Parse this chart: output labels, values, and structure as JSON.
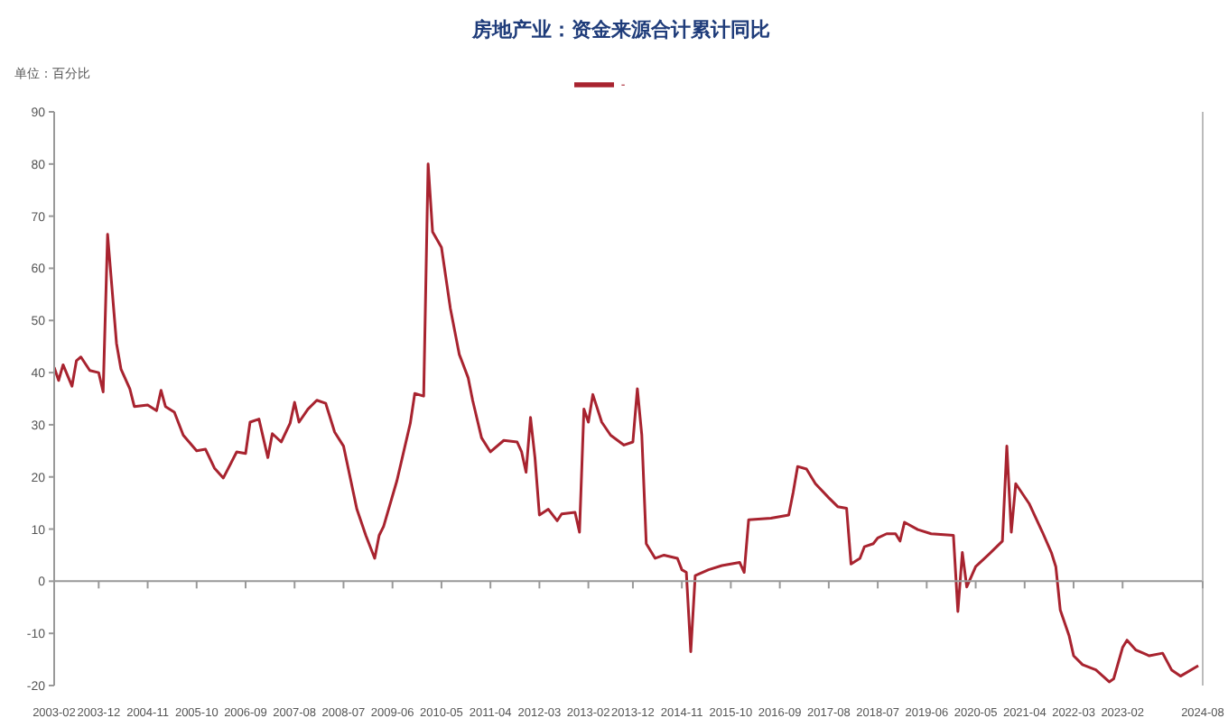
{
  "chart_data": {
    "type": "line",
    "title": "房地产业：资金来源合计累计同比",
    "ylabel": "单位：百分比",
    "legend": "top",
    "marker": "none",
    "x": [
      "2003-02",
      "2003-03",
      "2003-04",
      "2003-06",
      "2003-07",
      "2003-08",
      "2003-10",
      "2003-12",
      "2004-01",
      "2004-02",
      "2004-04",
      "2004-05",
      "2004-07",
      "2004-08",
      "2004-11",
      "2005-01",
      "2005-02",
      "2005-03",
      "2005-05",
      "2005-07",
      "2005-10",
      "2005-12",
      "2006-02",
      "2006-04",
      "2006-07",
      "2006-09",
      "2006-10",
      "2006-12",
      "2007-02",
      "2007-03",
      "2007-05",
      "2007-07",
      "2007-08",
      "2007-09",
      "2007-11",
      "2008-01",
      "2008-03",
      "2008-05",
      "2008-07",
      "2008-10",
      "2008-12",
      "2009-02",
      "2009-03",
      "2009-04",
      "2009-07",
      "2009-10",
      "2009-11",
      "2010-01",
      "2010-02",
      "2010-03",
      "2010-05",
      "2010-07",
      "2010-09",
      "2010-11",
      "2010-12",
      "2011-02",
      "2011-04",
      "2011-07",
      "2011-10",
      "2011-11",
      "2011-12",
      "2012-01",
      "2012-02",
      "2012-03",
      "2012-05",
      "2012-07",
      "2012-08",
      "2012-11",
      "2012-12",
      "2013-01",
      "2013-02",
      "2013-03",
      "2013-05",
      "2013-07",
      "2013-10",
      "2013-12",
      "2014-01",
      "2014-02",
      "2014-03",
      "2014-05",
      "2014-07",
      "2014-10",
      "2014-11",
      "2014-12",
      "2015-01",
      "2015-02",
      "2015-05",
      "2015-08",
      "2015-12",
      "2016-01",
      "2016-02",
      "2016-07",
      "2016-11",
      "2016-12",
      "2017-01",
      "2017-03",
      "2017-05",
      "2017-08",
      "2017-10",
      "2017-12",
      "2018-01",
      "2018-03",
      "2018-04",
      "2018-06",
      "2018-07",
      "2018-09",
      "2018-11",
      "2018-12",
      "2019-01",
      "2019-04",
      "2019-07",
      "2019-12",
      "2020-01",
      "2020-02",
      "2020-03",
      "2020-05",
      "2020-08",
      "2020-11",
      "2020-12",
      "2021-01",
      "2021-02",
      "2021-05",
      "2021-08",
      "2021-10",
      "2021-11",
      "2021-12",
      "2022-02",
      "2022-03",
      "2022-05",
      "2022-08",
      "2022-11",
      "2022-12",
      "2023-02",
      "2023-03",
      "2023-05",
      "2023-08",
      "2023-11",
      "2024-01",
      "2024-03",
      "2024-07"
    ],
    "series": [
      {
        "name": "-",
        "color": "#a8232f",
        "values": [
          41,
          38.5,
          41.5,
          37.4,
          42.3,
          43,
          40.4,
          40,
          36.3,
          66.5,
          45.6,
          40.7,
          36.9,
          33.5,
          33.8,
          32.7,
          36.6,
          33.5,
          32.4,
          28,
          25,
          25.3,
          21.7,
          19.8,
          24.8,
          24.5,
          30.5,
          31.1,
          23.7,
          28.3,
          26.7,
          30.3,
          34.3,
          30.5,
          33,
          34.7,
          34.1,
          28.6,
          25.9,
          13.8,
          8.8,
          4.4,
          8.8,
          10.5,
          19.3,
          30.3,
          36,
          35.5,
          80,
          67,
          64,
          52.3,
          43.5,
          39,
          34.7,
          27.5,
          24.8,
          27,
          26.7,
          24.8,
          20.9,
          31.4,
          23.7,
          12.7,
          13.8,
          11.6,
          12.9,
          13.2,
          9.4,
          33,
          30.5,
          35.8,
          30.5,
          28,
          26.1,
          26.7,
          36.9,
          28,
          7.2,
          4.4,
          5,
          4.4,
          2.2,
          1.7,
          -13.5,
          1.1,
          2.2,
          3,
          3.6,
          1.7,
          11.8,
          12.1,
          12.7,
          17,
          22,
          21.5,
          18.7,
          16,
          14.3,
          14,
          3.3,
          4.4,
          6.6,
          7.2,
          8.3,
          9.1,
          9.1,
          7.7,
          11.3,
          9.9,
          9.1,
          8.8,
          -5.8,
          5.5,
          -1.1,
          2.8,
          5.2,
          7.7,
          25.9,
          9.4,
          18.7,
          14.9,
          9.4,
          5.5,
          2.8,
          -5.5,
          -10.5,
          -14.3,
          -16,
          -17,
          -19.3,
          -18.7,
          -12.7,
          -11.3,
          -13.2,
          -14.3,
          -13.8,
          -17,
          -18.2,
          -16.2
        ]
      }
    ],
    "xlim": [
      "2003-02",
      "2024-08"
    ],
    "xticks": [
      "2003-02",
      "2003-12",
      "2004-11",
      "2005-10",
      "2006-09",
      "2007-08",
      "2008-07",
      "2009-06",
      "2010-05",
      "2011-04",
      "2012-03",
      "2013-02",
      "2013-12",
      "2014-11",
      "2015-10",
      "2016-09",
      "2017-08",
      "2018-07",
      "2019-06",
      "2020-05",
      "2021-04",
      "2022-03",
      "2023-02",
      "2024-08"
    ],
    "ylim": [
      -20,
      90
    ],
    "yticks": [
      -20,
      -10,
      0,
      10,
      20,
      30,
      40,
      50,
      60,
      70,
      80,
      90
    ]
  }
}
